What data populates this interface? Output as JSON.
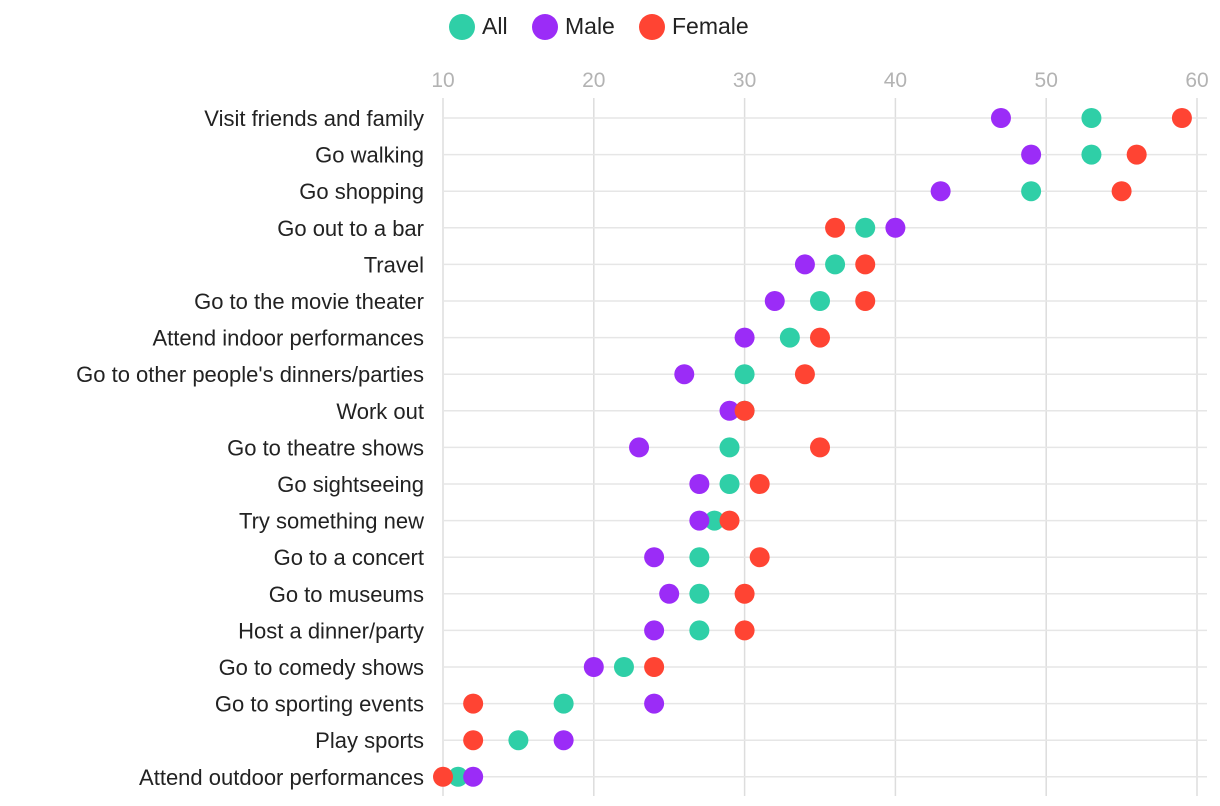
{
  "chart_data": {
    "type": "scatter",
    "subtype": "dot-plot",
    "title": "",
    "xlabel": "",
    "ylabel": "",
    "xlim": [
      10,
      60
    ],
    "xticks": [
      10,
      20,
      30,
      40,
      50,
      60
    ],
    "grid": true,
    "legend_position": "top",
    "categories": [
      "Visit friends and family",
      "Go walking",
      "Go shopping",
      "Go out to a bar",
      "Travel",
      "Go to the movie theater",
      "Attend indoor performances",
      "Go to other people's dinners/parties",
      "Work out",
      "Go to theatre shows",
      "Go sightseeing",
      "Try something new",
      "Go to a concert",
      "Go to museums",
      "Host a dinner/party",
      "Go to comedy shows",
      "Go to sporting events",
      "Play sports",
      "Attend outdoor performances"
    ],
    "series": [
      {
        "name": "All",
        "color": "#2fcfa7",
        "values": [
          53,
          53,
          49,
          38,
          36,
          35,
          33,
          30,
          30,
          29,
          29,
          28,
          27,
          27,
          27,
          22,
          18,
          15,
          11
        ]
      },
      {
        "name": "Male",
        "color": "#9b2cf7",
        "values": [
          47,
          49,
          43,
          40,
          34,
          32,
          30,
          26,
          29,
          23,
          27,
          27,
          24,
          25,
          24,
          20,
          24,
          18,
          12
        ]
      },
      {
        "name": "Female",
        "color": "#ff4433",
        "values": [
          59,
          56,
          55,
          36,
          38,
          38,
          35,
          34,
          30,
          35,
          31,
          29,
          31,
          30,
          30,
          24,
          12,
          12,
          10
        ]
      }
    ]
  }
}
